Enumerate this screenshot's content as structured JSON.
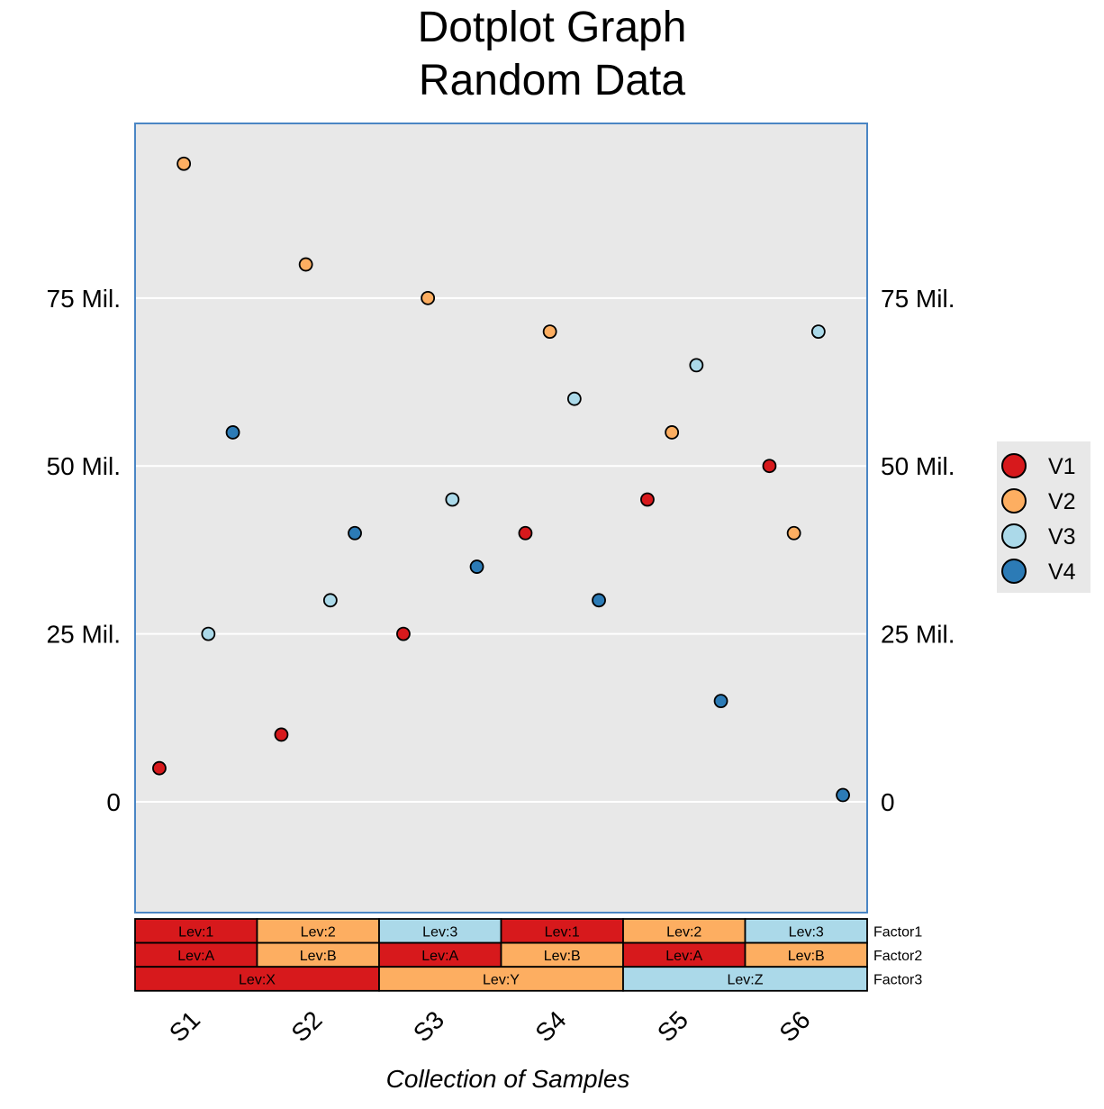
{
  "chart_data": {
    "type": "scatter",
    "title": "Dotplot Graph",
    "subtitle": "Random Data",
    "xlabel": "Collection of Samples",
    "ylabel": "",
    "categories": [
      "S1",
      "S2",
      "S3",
      "S4",
      "S5",
      "S6"
    ],
    "ylim": [
      -16500000,
      101000000
    ],
    "y_ticks": [
      0,
      25000000,
      50000000,
      75000000
    ],
    "y_tick_labels": [
      "0",
      "25 Mil.",
      "50 Mil.",
      "75 Mil."
    ],
    "grid": "horizontal",
    "legend_position": "right",
    "series": [
      {
        "name": "V1",
        "color": "#d7191c",
        "values": [
          5000000,
          10000000,
          25000000,
          40000000,
          45000000,
          50000000
        ]
      },
      {
        "name": "V2",
        "color": "#fdae61",
        "values": [
          95000000,
          80000000,
          75000000,
          70000000,
          55000000,
          40000000
        ]
      },
      {
        "name": "V3",
        "color": "#abd9e9",
        "values": [
          25000000,
          30000000,
          45000000,
          60000000,
          65000000,
          70000000
        ]
      },
      {
        "name": "V4",
        "color": "#2c7bb6",
        "values": [
          55000000,
          40000000,
          35000000,
          30000000,
          15000000,
          1000000
        ]
      }
    ],
    "factors": [
      {
        "name": "Factor1",
        "levels": [
          "Lev:1",
          "Lev:2",
          "Lev:3",
          "Lev:1",
          "Lev:2",
          "Lev:3"
        ]
      },
      {
        "name": "Factor2",
        "levels": [
          "Lev:A",
          "Lev:B",
          "Lev:A",
          "Lev:B",
          "Lev:A",
          "Lev:B"
        ]
      },
      {
        "name": "Factor3",
        "levels": [
          "Lev:X",
          "Lev:X",
          "Lev:Y",
          "Lev:Y",
          "Lev:Z",
          "Lev:Z"
        ]
      }
    ],
    "level_colors": {
      "Lev:1": "#d7191c",
      "Lev:2": "#fdae61",
      "Lev:3": "#abd9e9",
      "Lev:A": "#d7191c",
      "Lev:B": "#fdae61",
      "Lev:X": "#d7191c",
      "Lev:Y": "#fdae61",
      "Lev:Z": "#abd9e9"
    },
    "colors": {
      "plot_background": "#e8e8e8",
      "plot_border": "#4a86c4",
      "gridline": "#ffffff",
      "legend_background": "#e8e8e8"
    }
  }
}
